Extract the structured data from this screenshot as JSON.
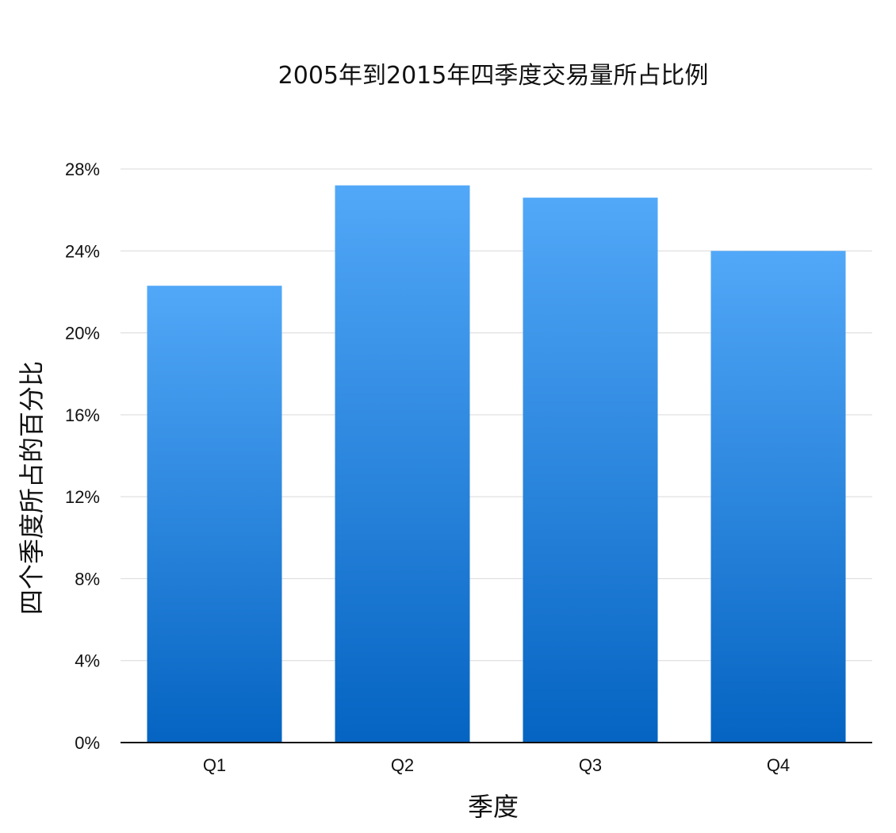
{
  "chart_data": {
    "type": "bar",
    "title": "2005年到2015年四季度交易量所占比例",
    "xlabel": "季度",
    "ylabel": "四个季度所占的百分比",
    "categories": [
      "Q1",
      "Q2",
      "Q3",
      "Q4"
    ],
    "values": [
      22.3,
      27.2,
      26.6,
      24.0
    ],
    "ylim": [
      0,
      28
    ],
    "yticks": [
      "0%",
      "4%",
      "8%",
      "12%",
      "16%",
      "20%",
      "24%",
      "28%"
    ],
    "ytick_values": [
      0,
      4,
      8,
      12,
      16,
      20,
      24,
      28
    ],
    "grid": true,
    "legend": "none",
    "colors": {
      "bar_top": "#52a8f8",
      "bar_bottom": "#0564c2",
      "grid": "#d9d9d9",
      "axis": "#111111",
      "text": "#111111"
    }
  }
}
